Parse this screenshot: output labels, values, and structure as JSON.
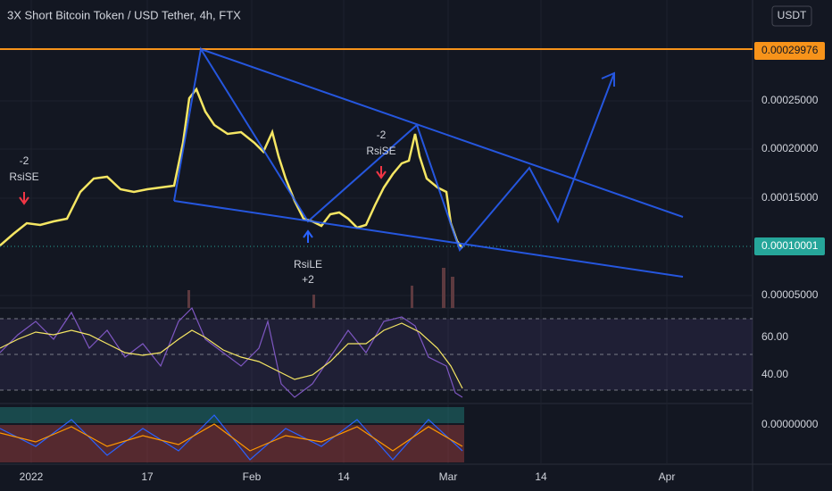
{
  "header": {
    "title": "3X Short Bitcoin Token / USD Tether, 4h, FTX",
    "currency_button": "USDT"
  },
  "price_axis": {
    "labels": [
      "0.00025000",
      "0.00020000",
      "0.00015000",
      "0.00005000"
    ],
    "resistance_label": "0.00029976",
    "last_price_label": "0.00010001"
  },
  "rsi_axis": {
    "labels": [
      "60.00",
      "40.00"
    ]
  },
  "macd_axis": {
    "labels": [
      "0.00000000"
    ]
  },
  "time_axis": {
    "labels": [
      "2022",
      "17",
      "Feb",
      "14",
      "Mar",
      "14",
      "Apr"
    ]
  },
  "annotations": [
    {
      "count": "-2",
      "signal": "RsiSE"
    },
    {
      "signal": "RsiLE",
      "count": "+2"
    },
    {
      "count": "-2",
      "signal": "RsiSE"
    }
  ]
}
